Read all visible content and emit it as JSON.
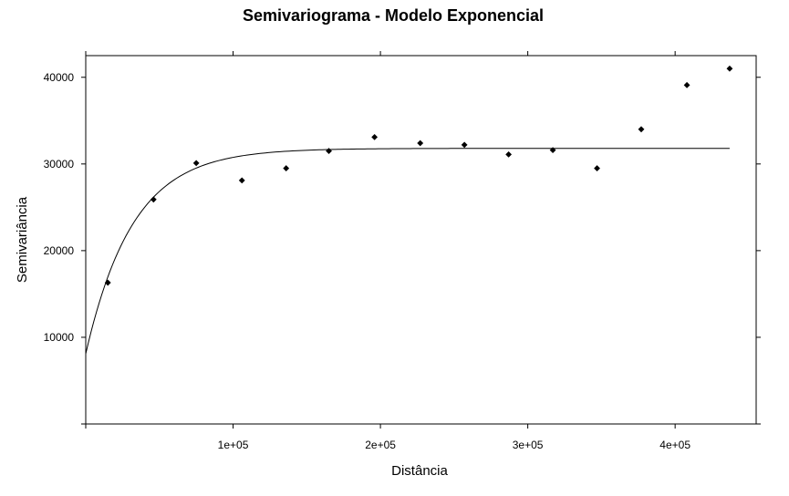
{
  "chart_data": {
    "type": "scatter",
    "title": "Semivariograma - Modelo Exponencial",
    "xlabel": "Distância",
    "ylabel": "Semivariância",
    "xlim": [
      0,
      455000
    ],
    "ylim": [
      0,
      42500
    ],
    "x_ticks": [
      100000,
      200000,
      300000,
      400000
    ],
    "x_tick_labels": [
      "1e+05",
      "2e+05",
      "3e+05",
      "4e+05"
    ],
    "y_ticks": [
      10000,
      20000,
      30000,
      40000
    ],
    "y_tick_labels": [
      "10000",
      "20000",
      "30000",
      "40000"
    ],
    "grid": false,
    "points": [
      {
        "x": 15000,
        "y": 16300
      },
      {
        "x": 46000,
        "y": 25900
      },
      {
        "x": 75000,
        "y": 30100
      },
      {
        "x": 106000,
        "y": 28100
      },
      {
        "x": 136000,
        "y": 29500
      },
      {
        "x": 165000,
        "y": 31500
      },
      {
        "x": 196000,
        "y": 33100
      },
      {
        "x": 227000,
        "y": 32400
      },
      {
        "x": 257000,
        "y": 32200
      },
      {
        "x": 287000,
        "y": 31100
      },
      {
        "x": 317000,
        "y": 31600
      },
      {
        "x": 347000,
        "y": 29500
      },
      {
        "x": 377000,
        "y": 34000
      },
      {
        "x": 408000,
        "y": 39100
      },
      {
        "x": 437000,
        "y": 41000
      }
    ],
    "fitted_model": {
      "type": "exponential",
      "nugget": 8100,
      "sill": 31800,
      "range": 32000,
      "x_end": 437000
    }
  }
}
